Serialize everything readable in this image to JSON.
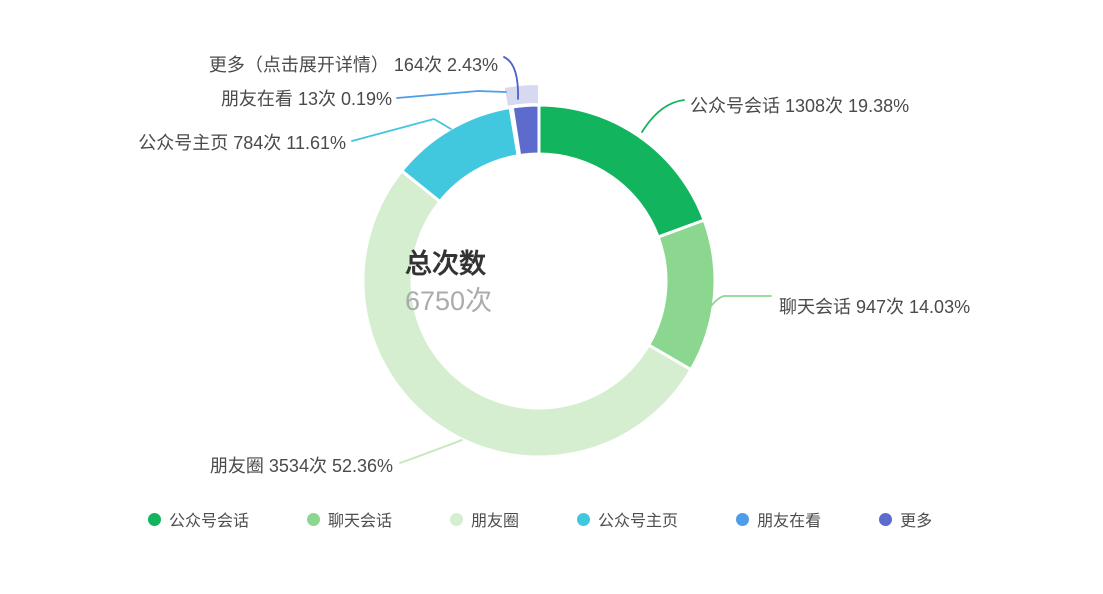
{
  "chart_data": {
    "type": "pie",
    "donut": true,
    "title": "",
    "center_label": {
      "title": "总次数",
      "value": "6750次"
    },
    "total": 6750,
    "unit": "次",
    "legend_position": "bottom",
    "series": [
      {
        "name": "公众号会话",
        "value": 1308,
        "percent": "19.38%",
        "color": "#12b55e",
        "line_color": "#15b461",
        "label": "公众号会话 1308次 19.38%"
      },
      {
        "name": "聊天会话",
        "value": 947,
        "percent": "14.03%",
        "color": "#8cd78f",
        "line_color": "#8cd78f",
        "label": "聊天会话 947次 14.03%"
      },
      {
        "name": "朋友圈",
        "value": 3534,
        "percent": "52.36%",
        "color": "#d4eecf",
        "line_color": "#c6e7bd",
        "label": "朋友圈 3534次 52.36%"
      },
      {
        "name": "公众号主页",
        "value": 784,
        "percent": "11.61%",
        "color": "#41c8df",
        "line_color": "#45c6dd",
        "label": "公众号主页 784次 11.61%"
      },
      {
        "name": "朋友在看",
        "value": 13,
        "percent": "0.19%",
        "color": "#4d9dea",
        "line_color": "#4d9dea",
        "label": "朋友在看 13次 0.19%"
      },
      {
        "name": "更多",
        "value": 164,
        "percent": "2.43%",
        "color": "#5d6ccc",
        "line_color": "#4a63c8",
        "halo_color": "#d7d9f1",
        "label": "更多（点击展开详情） 164次 2.43%"
      }
    ],
    "legend": [
      "公众号会话",
      "聊天会话",
      "朋友圈",
      "公众号主页",
      "朋友在看",
      "更多"
    ]
  }
}
